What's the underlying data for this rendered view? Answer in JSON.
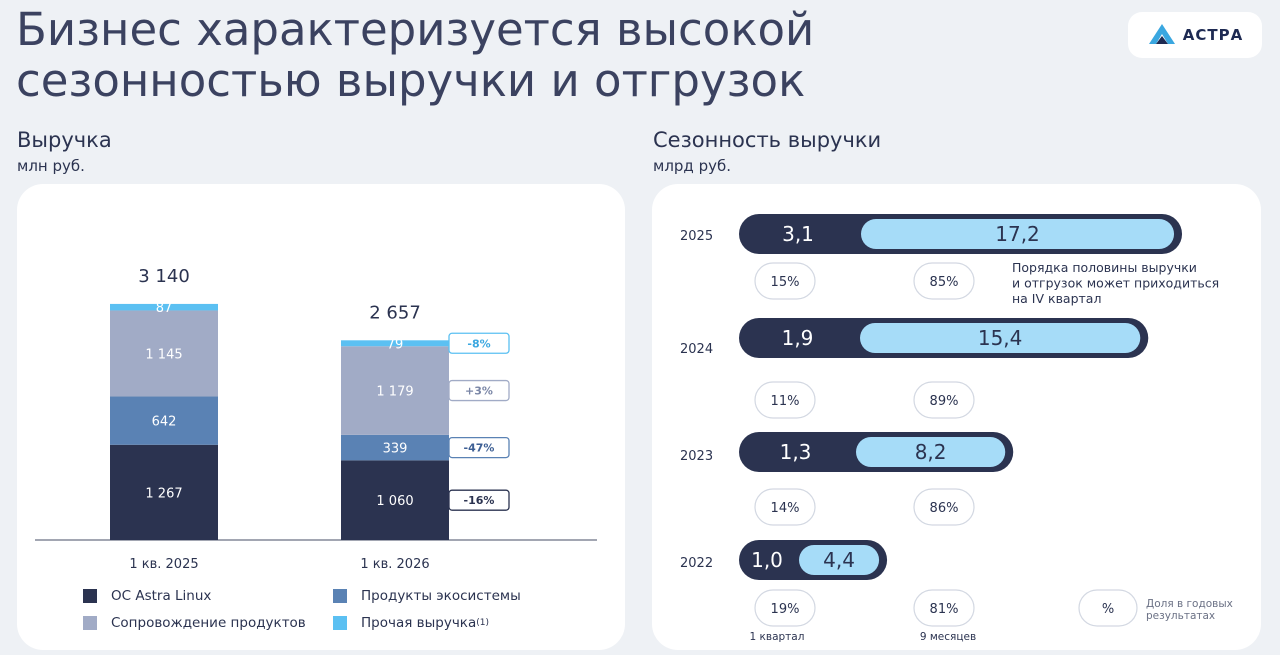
{
  "header": {
    "title": "Бизнес характеризуется высокой сезонностью выручки и отгрузок",
    "logo_text": "АСТРА"
  },
  "left_panel": {
    "title": "Выручка",
    "unit": "млн руб."
  },
  "right_panel": {
    "title": "Сезонность выручки",
    "unit": "млрд руб."
  },
  "colors": {
    "os_astra_linux": "#2b3350",
    "ecosystem_products": "#5a82b4",
    "product_support": "#a1abc6",
    "other_revenue": "#5bc0f2",
    "bar_dark": "#2b3350",
    "bar_light": "#a6dcf8"
  },
  "chart_data": [
    {
      "type": "bar",
      "stacked": true,
      "categories": [
        "1 кв. 2025",
        "1 кв. 2026"
      ],
      "totals": [
        "3 140",
        "2 657"
      ],
      "series": [
        {
          "key": "os",
          "name": "ОС Astra Linux",
          "values": [
            1267,
            1060
          ],
          "labels": [
            "1 267",
            "1 060"
          ],
          "change": "-16%"
        },
        {
          "key": "eco",
          "name": "Продукты экосистемы",
          "values": [
            642,
            339
          ],
          "labels": [
            "642",
            "339"
          ],
          "change": "-47%"
        },
        {
          "key": "support",
          "name": "Сопровождение продуктов",
          "values": [
            1145,
            1179
          ],
          "labels": [
            "1 145",
            "1 179"
          ],
          "change": "+3%"
        },
        {
          "key": "other",
          "name": "Прочая выручка",
          "name_sup": "(1)",
          "values": [
            87,
            79
          ],
          "labels": [
            "87",
            "79"
          ],
          "change": "-8%"
        }
      ],
      "legend_position": "bottom"
    },
    {
      "type": "bar",
      "orientation": "horizontal",
      "stacked": true,
      "categories": [
        "2025",
        "2024",
        "2023",
        "2022"
      ],
      "series": [
        {
          "name": "1 квартал",
          "values": [
            3.1,
            1.9,
            1.3,
            1.0
          ],
          "labels": [
            "3,1",
            "1,9",
            "1,3",
            "1,0"
          ],
          "shares": [
            "15%",
            "11%",
            "14%",
            "19%"
          ]
        },
        {
          "name": "9 месяцев",
          "values": [
            17.2,
            15.4,
            8.2,
            4.4
          ],
          "labels": [
            "17,2",
            "15,4",
            "8,2",
            "4,4"
          ],
          "shares": [
            "85%",
            "89%",
            "86%",
            "81%"
          ]
        }
      ],
      "annotation": "Порядка половины выручки и отгрузок может приходиться на IV квартал",
      "annotation_lines": [
        "Порядка половины выручки",
        "и отгрузок может приходиться",
        "на IV квартал"
      ],
      "legend": {
        "symbol": "%",
        "lines": [
          "Доля в годовых",
          "результатах"
        ]
      }
    }
  ]
}
